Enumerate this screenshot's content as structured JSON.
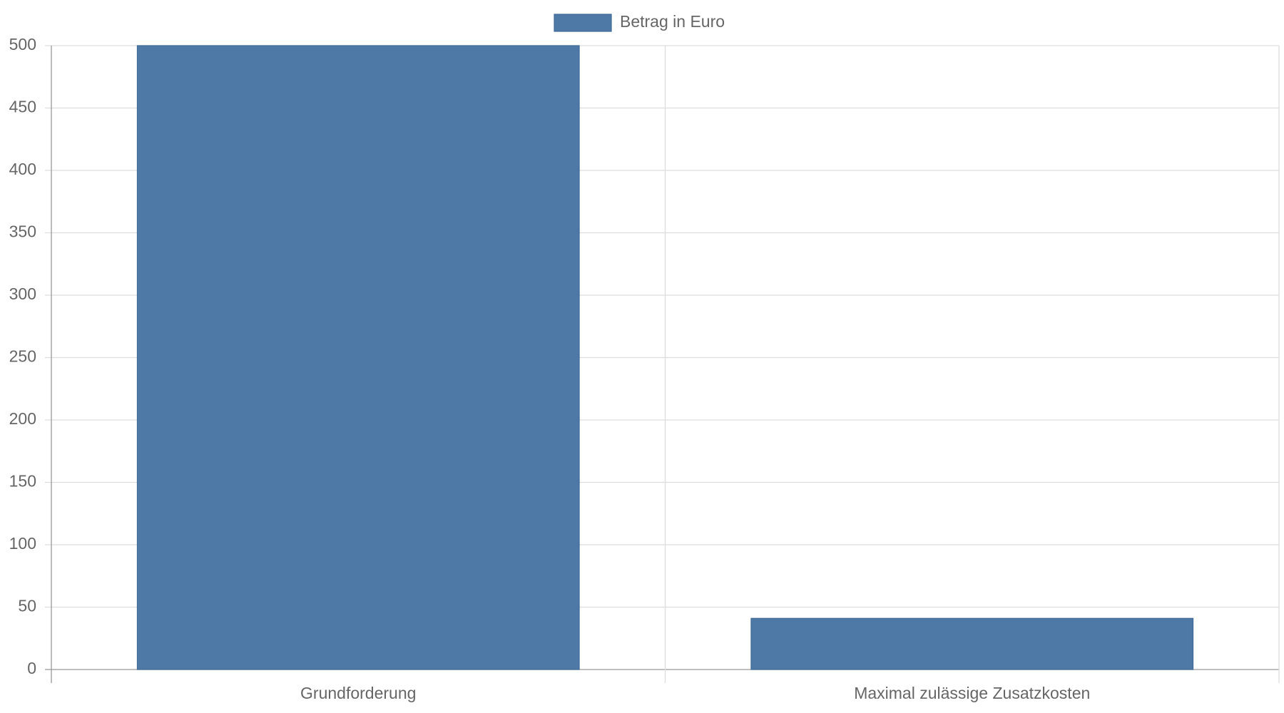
{
  "chart_data": {
    "type": "bar",
    "categories": [
      "Grundforderung",
      "Maximal zulässige Zusatzkosten"
    ],
    "series": [
      {
        "name": "Betrag in Euro",
        "color": "#4e79a7",
        "values": [
          500,
          41
        ]
      }
    ],
    "ylim": [
      0,
      500
    ],
    "yticks": [
      0,
      50,
      100,
      150,
      200,
      250,
      300,
      350,
      400,
      450,
      500
    ],
    "grid": true,
    "legend": "top"
  }
}
